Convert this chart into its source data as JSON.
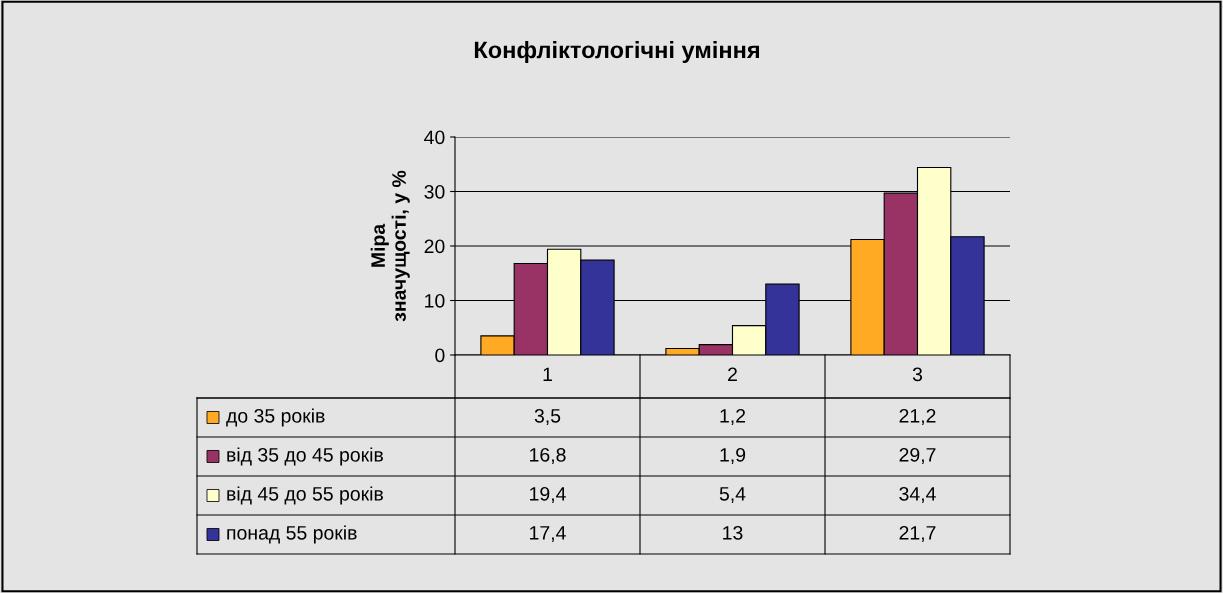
{
  "chart_data": {
    "type": "bar",
    "title": "Конфліктологічні уміння",
    "ylabel": "Міра\nзначущості, у %",
    "categories": [
      "1",
      "2",
      "3"
    ],
    "series": [
      {
        "name": "до 35 років",
        "color": "#ffaa22",
        "values": [
          3.5,
          1.2,
          21.2
        ],
        "value_labels": [
          "3,5",
          "1,2",
          "21,2"
        ]
      },
      {
        "name": "від 35 до 45 років",
        "color": "#993366",
        "values": [
          16.8,
          1.9,
          29.7
        ],
        "value_labels": [
          "16,8",
          "1,9",
          "29,7"
        ]
      },
      {
        "name": "від 45 до 55 років",
        "color": "#ffffcc",
        "values": [
          19.4,
          5.4,
          34.4
        ],
        "value_labels": [
          "19,4",
          "5,4",
          "34,4"
        ]
      },
      {
        "name": "понад 55 років",
        "color": "#333399",
        "values": [
          17.4,
          13,
          21.7
        ],
        "value_labels": [
          "17,4",
          "13",
          "21,7"
        ]
      }
    ],
    "ylim": [
      0,
      40
    ],
    "yticks": [
      0,
      10,
      20,
      30,
      40
    ],
    "grid": "y",
    "legend": "bottom left"
  }
}
